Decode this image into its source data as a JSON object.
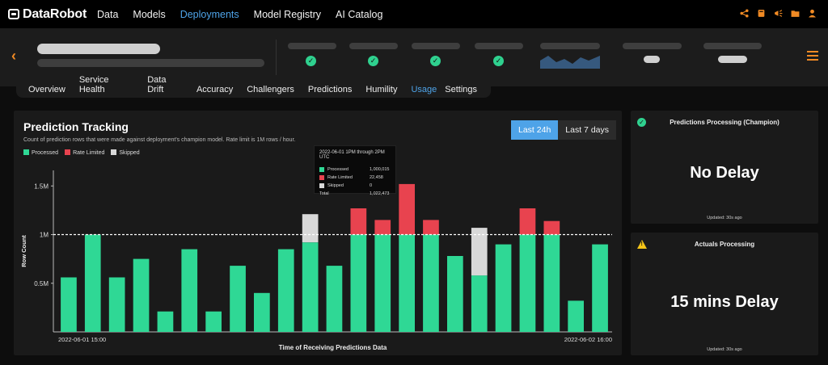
{
  "nav": {
    "logo": "DataRobot",
    "items": [
      "Data",
      "Models",
      "Deployments",
      "Model Registry",
      "AI Catalog"
    ],
    "active": "Deployments",
    "icons": [
      "share-icon",
      "book-icon",
      "megaphone-icon",
      "folder-icon",
      "user-icon"
    ]
  },
  "tabs": {
    "items": [
      "Overview",
      "Service Health",
      "Data Drift",
      "Accuracy",
      "Challengers",
      "Predictions",
      "Humility",
      "Usage",
      "Settings"
    ],
    "active": "Usage"
  },
  "panel": {
    "title": "Prediction Tracking",
    "subtitle": "Count of prediction rows  that were made against deployment's champion model. Rate limit is 1M rows / hour.",
    "range_on": "Last 24h",
    "range_off": "Last 7 days"
  },
  "colors": {
    "processed": "#2fd895",
    "rate_limited": "#e8434f",
    "skipped": "#d8d8d8",
    "accent": "#4ea3e8",
    "orange": "#f08a24"
  },
  "chart_data": {
    "type": "bar",
    "stacked": true,
    "xlabel": "Time of Receiving Predictions Data",
    "ylabel": "Row Count",
    "ylim": [
      0,
      1660000
    ],
    "yticks": [
      {
        "v": 500000,
        "label": "0.5M"
      },
      {
        "v": 1000000,
        "label": "1M"
      },
      {
        "v": 1500000,
        "label": "1.5M"
      }
    ],
    "xtick_labels": [
      "2022-06-01 15:00",
      "2022-06-02 16:00"
    ],
    "rate_limit": 1000000,
    "legend": [
      "Processed",
      "Rate Limited",
      "Skipped"
    ],
    "series": [
      {
        "name": "Processed",
        "values": [
          560000,
          1000000,
          560000,
          750000,
          210000,
          850000,
          210000,
          680000,
          400000,
          850000,
          920000,
          680000,
          1000000,
          1000000,
          1000000,
          1000000,
          780000,
          580000,
          900000,
          1000000,
          1000000,
          320000,
          900000
        ]
      },
      {
        "name": "Rate Limited",
        "values": [
          0,
          0,
          0,
          0,
          0,
          0,
          0,
          0,
          0,
          0,
          0,
          0,
          270000,
          150000,
          520000,
          150000,
          0,
          0,
          0,
          270000,
          140000,
          0,
          0
        ]
      },
      {
        "name": "Skipped",
        "values": [
          0,
          0,
          0,
          0,
          0,
          0,
          0,
          0,
          0,
          0,
          290000,
          0,
          0,
          0,
          0,
          0,
          0,
          490000,
          0,
          0,
          0,
          0,
          0
        ]
      }
    ]
  },
  "tooltip": {
    "title": "2022-06-01 1PM through 2PM UTC",
    "rows": [
      {
        "label": "Processed",
        "value": "1,000,015"
      },
      {
        "label": "Rate Limited",
        "value": "22,458"
      },
      {
        "label": "Skipped",
        "value": "0"
      },
      {
        "label": "Total",
        "value": "1,022,473"
      }
    ]
  },
  "cards": {
    "processing": {
      "title": "Predictions Processing (Champion)",
      "status": "No Delay",
      "updated": "Updated: 30s ago"
    },
    "actuals": {
      "title": "Actuals Processing",
      "status": "15 mins Delay",
      "updated": "Updated: 30s ago"
    }
  }
}
